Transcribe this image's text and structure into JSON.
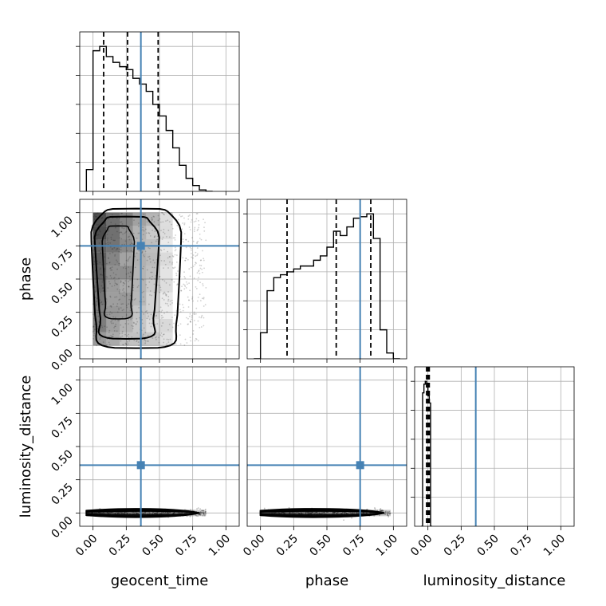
{
  "chart_data": {
    "type": "corner",
    "parameters": [
      "geocent_time",
      "phase",
      "luminosity_distance"
    ],
    "axis_labels": {
      "x": [
        "geocent_time",
        "phase",
        "luminosity_distance"
      ],
      "y": [
        "phase",
        "luminosity_distance"
      ]
    },
    "axis_range": [
      -0.1,
      1.1
    ],
    "ticks": [
      0,
      0.25,
      0.5,
      0.75,
      1.0
    ],
    "tick_labels": [
      "0.00",
      "0.25",
      "0.50",
      "0.75",
      "1.00"
    ],
    "grid": true,
    "truths": [
      0.36,
      0.75,
      0.36
    ],
    "truth_color": "#4682b4",
    "hist_color": "#000000",
    "marginals": [
      {
        "parameter": "geocent_time",
        "bin_edges": [
          -0.05,
          0.0,
          0.05,
          0.1,
          0.15,
          0.2,
          0.25,
          0.3,
          0.35,
          0.4,
          0.45,
          0.5,
          0.55,
          0.6,
          0.65,
          0.7,
          0.75,
          0.8,
          0.85,
          0.9
        ],
        "counts": [
          0.15,
          0.97,
          1.0,
          0.93,
          0.89,
          0.86,
          0.84,
          0.78,
          0.74,
          0.69,
          0.6,
          0.52,
          0.42,
          0.3,
          0.18,
          0.09,
          0.04,
          0.01,
          0.0
        ],
        "quantiles": [
          0.08,
          0.26,
          0.49
        ]
      },
      {
        "parameter": "phase",
        "bin_edges": [
          -0.05,
          0.0,
          0.05,
          0.1,
          0.15,
          0.2,
          0.25,
          0.3,
          0.35,
          0.4,
          0.45,
          0.5,
          0.55,
          0.6,
          0.65,
          0.7,
          0.75,
          0.8,
          0.85,
          0.9,
          0.95,
          1.0,
          1.05
        ],
        "counts": [
          0.0,
          0.18,
          0.47,
          0.56,
          0.58,
          0.6,
          0.62,
          0.64,
          0.64,
          0.68,
          0.71,
          0.77,
          0.88,
          0.85,
          0.91,
          0.97,
          0.98,
          1.0,
          0.83,
          0.2,
          0.04,
          0.0
        ],
        "quantiles": [
          0.2,
          0.57,
          0.83
        ]
      },
      {
        "parameter": "luminosity_distance",
        "bin_edges": [
          -0.05,
          -0.04,
          -0.03,
          -0.02,
          -0.01,
          0.0,
          0.01,
          0.02,
          0.03
        ],
        "counts": [
          0.0,
          0.92,
          0.98,
          1.0,
          0.96,
          0.9,
          0.85,
          0.0
        ],
        "quantiles": [
          -0.01,
          0.0,
          0.01
        ]
      }
    ],
    "joint_2d": [
      {
        "x_param": "geocent_time",
        "y_param": "phase",
        "x_range": [
          0.0,
          0.85
        ],
        "y_range": [
          0.0,
          1.0
        ],
        "contour_x_extent": [
          0.05,
          0.65
        ]
      },
      {
        "x_param": "geocent_time",
        "y_param": "luminosity_distance",
        "x_range": [
          -0.05,
          0.85
        ],
        "y_value": 0.0
      },
      {
        "x_param": "phase",
        "y_param": "luminosity_distance",
        "x_range": [
          0.0,
          0.98
        ],
        "y_value": 0.0
      }
    ]
  }
}
